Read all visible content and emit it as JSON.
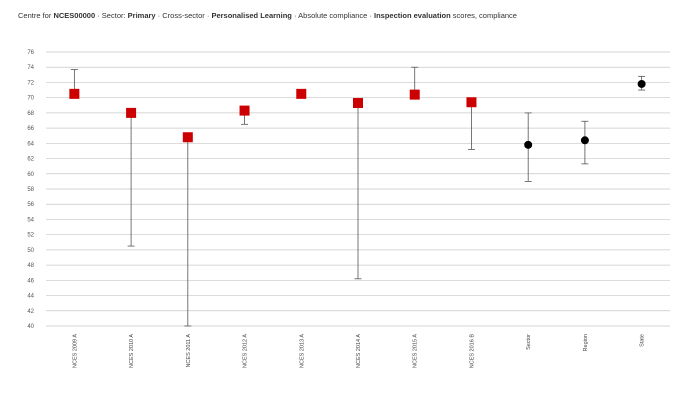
{
  "header": {
    "title_parts": [
      {
        "text": "Centre for ",
        "bold": false
      },
      {
        "text": "NCES00000",
        "bold": true
      },
      {
        "text": " · Sector: ",
        "bold": false
      },
      {
        "text": "Primary",
        "bold": true
      },
      {
        "text": " · Cross-sector · ",
        "bold": false
      },
      {
        "text": "Personalised Learning",
        "bold": true
      },
      {
        "text": " · Absolute compliance · ",
        "bold": false
      },
      {
        "text": "Inspection evaluation",
        "bold": true
      },
      {
        "text": " scores, compliance",
        "bold": false
      }
    ]
  },
  "chart_data": {
    "type": "scatter",
    "title": "Centre for NCES00000 · Sector: Primary · Cross-sector · Personalised Learning · Absolute compliance · Inspection evaluation scores, compliance",
    "xlabel": "",
    "ylabel": "",
    "ylim": [
      40,
      76
    ],
    "yticks": [
      40,
      42,
      44,
      46,
      48,
      50,
      52,
      54,
      56,
      58,
      60,
      62,
      64,
      66,
      68,
      70,
      72,
      74,
      76
    ],
    "grid": true,
    "categories": [
      "NCES 2009 A",
      "NCES 2010 A",
      "NCES 2011 A",
      "NCES 2012 A",
      "NCES 2013 A",
      "NCES 2014 A",
      "NCES 2015 A",
      "NCES 2016 B",
      "Sector",
      "Region",
      "State"
    ],
    "values": [
      70.5,
      68.0,
      64.8,
      68.3,
      70.5,
      69.3,
      70.4,
      69.4,
      63.8,
      64.4,
      71.8
    ],
    "error_low": [
      70.5,
      50.5,
      40.0,
      66.5,
      70.5,
      46.2,
      70.4,
      63.2,
      59.0,
      61.3,
      71.0
    ],
    "error_high": [
      73.7,
      68.0,
      64.8,
      68.3,
      70.5,
      69.3,
      74.0,
      69.4,
      68.0,
      66.9,
      72.8
    ],
    "marker_styles": [
      "square",
      "square",
      "square",
      "square",
      "square",
      "square",
      "square",
      "square",
      "circle",
      "circle",
      "circle"
    ],
    "colors": {
      "square": "#cc0000",
      "circle": "#000000",
      "grid": "#c8c8c8",
      "error": "#555555"
    }
  }
}
